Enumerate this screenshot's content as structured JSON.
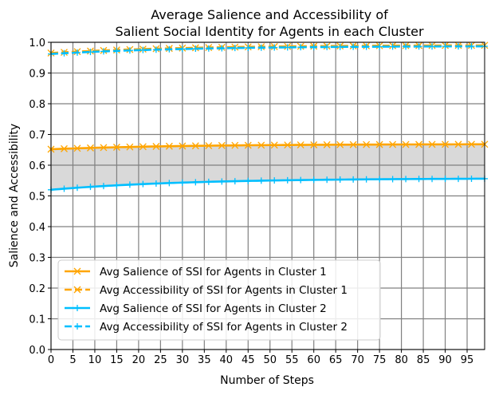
{
  "chart_data": {
    "type": "line",
    "title_lines": [
      "Average Salience and Accessibility of",
      "Salient Social Identity for Agents in each Cluster"
    ],
    "xlabel": "Number of Steps",
    "ylabel": "Salience and Accessibility",
    "xlim": [
      0,
      99
    ],
    "ylim": [
      0,
      1.0
    ],
    "x_ticks": [
      0,
      5,
      10,
      15,
      20,
      25,
      30,
      35,
      40,
      45,
      50,
      55,
      60,
      65,
      70,
      75,
      80,
      85,
      90,
      95
    ],
    "y_ticks": [
      "0.0",
      "0.1",
      "0.2",
      "0.3",
      "0.4",
      "0.5",
      "0.6",
      "0.7",
      "0.8",
      "0.9",
      "1.0"
    ],
    "grid": true,
    "legend_position": "lower-left",
    "shaded_region": {
      "between": [
        "Avg Salience of SSI for Agents in Cluster 1",
        "Avg Salience of SSI for Agents in Cluster 2"
      ],
      "color": "#d9d9d9"
    },
    "series": [
      {
        "name": "Avg Salience of SSI for Agents in Cluster 1",
        "color": "#ffa500",
        "linestyle": "solid",
        "marker": "x",
        "start": 0.652,
        "end": 0.668,
        "start_step": 0
      },
      {
        "name": "Avg Accessibility of SSI for Agents in Cluster 1",
        "color": "#ffa500",
        "linestyle": "dashed",
        "marker": "x",
        "start": 0.965,
        "end": 0.99,
        "start_step": 0
      },
      {
        "name": "Avg Salience of SSI for Agents in Cluster 2",
        "color": "#00bfff",
        "linestyle": "solid",
        "marker": "+",
        "start": 0.52,
        "end": 0.556,
        "start_step": 0
      },
      {
        "name": "Avg Accessibility of SSI for Agents in Cluster 2",
        "color": "#00bfff",
        "linestyle": "dashed",
        "marker": "+",
        "start": 0.962,
        "end": 0.987,
        "start_step": 0
      }
    ]
  }
}
